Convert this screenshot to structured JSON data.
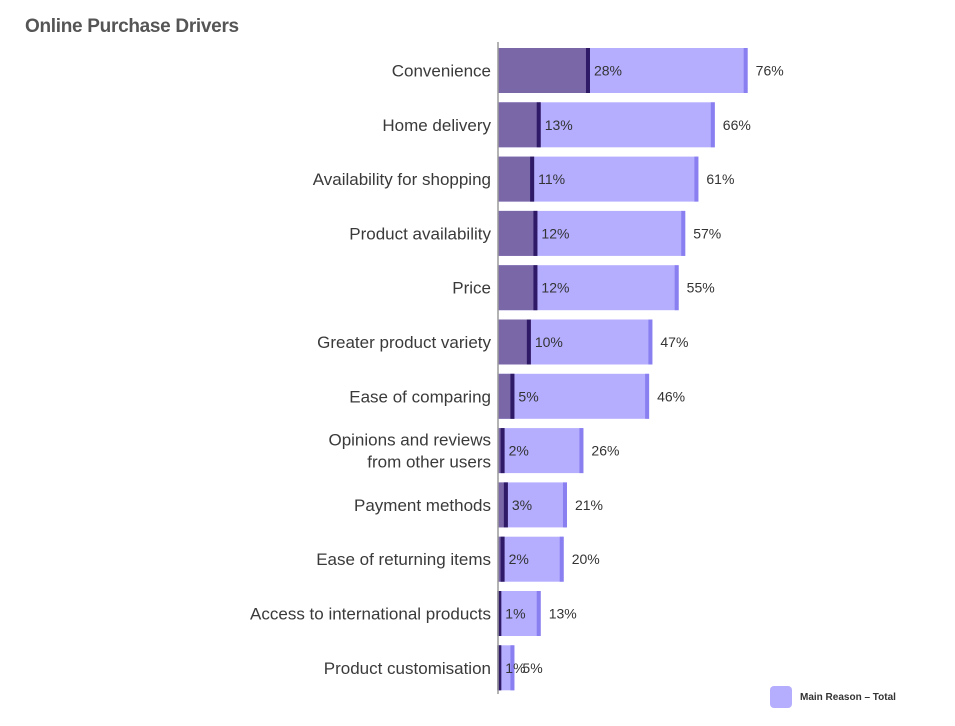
{
  "chart_data": {
    "type": "bar",
    "orientation": "horizontal",
    "title": "Online Purchase Drivers",
    "categories": [
      "Convenience",
      "Home delivery",
      "Availability for shopping",
      "Product availability",
      "Price",
      "Greater product variety",
      "Ease of comparing",
      "Opinions and reviews from other users",
      "Payment methods",
      "Ease of returning items",
      "Access to international products",
      "Product customisation"
    ],
    "series": [
      {
        "values": [
          76,
          66,
          61,
          57,
          55,
          47,
          46,
          26,
          21,
          20,
          13,
          5
        ],
        "labels": [
          "76%",
          "66%",
          "61%",
          "57%",
          "55%",
          "47%",
          "46%",
          "26%",
          "21%",
          "20%",
          "13%",
          "5%"
        ]
      },
      {
        "values": [
          28,
          13,
          11,
          12,
          12,
          10,
          5,
          2,
          3,
          2,
          1,
          1
        ],
        "labels": [
          "28%",
          "13%",
          "11%",
          "12%",
          "12%",
          "10%",
          "5%",
          "2%",
          "3%",
          "2%",
          "1%",
          "1%"
        ]
      }
    ],
    "legend": {
      "label": "Main Reason – Total",
      "placement": "bottom-right"
    },
    "colors": {
      "total": "#b5aeff",
      "total_edge": "#8a7ff0",
      "main": "#7a67a8",
      "main_edge": "#2e1a66",
      "axis": "#9a9a9a"
    },
    "xlim": [
      0,
      100
    ],
    "grid": false
  }
}
